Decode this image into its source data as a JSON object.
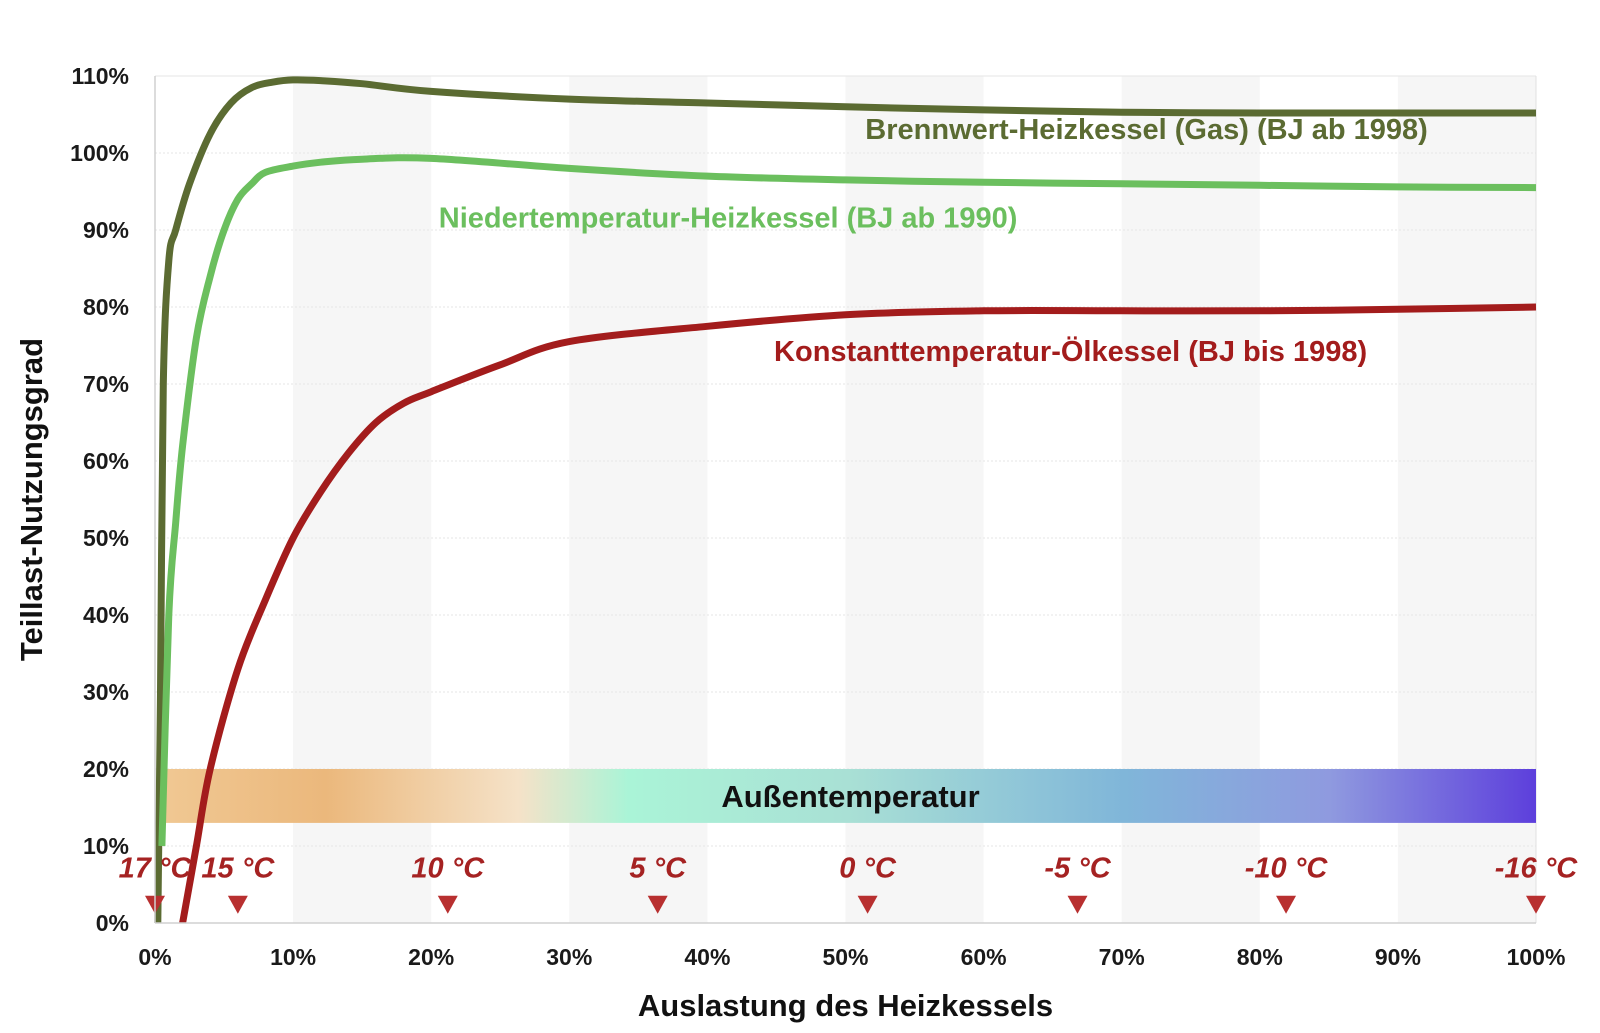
{
  "chart_data": {
    "type": "line",
    "title": "",
    "xlabel": "Auslastung des Heizkessels",
    "ylabel": "Teillast-Nutzungsgrad",
    "xlim": [
      0,
      100
    ],
    "ylim": [
      0,
      110
    ],
    "x_ticks": [
      0,
      10,
      20,
      30,
      40,
      50,
      60,
      70,
      80,
      90,
      100
    ],
    "x_tick_labels": [
      "0%",
      "10%",
      "20%",
      "30%",
      "40%",
      "50%",
      "60%",
      "70%",
      "80%",
      "90%",
      "100%"
    ],
    "y_ticks": [
      0,
      10,
      20,
      30,
      40,
      50,
      60,
      70,
      80,
      90,
      100,
      110
    ],
    "y_tick_labels": [
      "0%",
      "10%",
      "20%",
      "30%",
      "40%",
      "50%",
      "60%",
      "70%",
      "80%",
      "90%",
      "100%",
      "110%"
    ],
    "grid": true,
    "series": [
      {
        "name": "Brennwert-Heizkessel (Gas) (BJ ab 1998)",
        "color": "#5b6b32",
        "x": [
          0.2,
          0.4,
          0.6,
          1,
          1.5,
          2.5,
          4,
          5.5,
          7,
          8.5,
          10,
          12,
          15,
          20,
          30,
          40,
          50,
          60,
          70,
          80,
          90,
          100
        ],
        "y": [
          0,
          30,
          70,
          86,
          90,
          96,
          102.5,
          106.5,
          108.5,
          109.2,
          109.5,
          109.4,
          109,
          108,
          107,
          106.5,
          106,
          105.6,
          105.3,
          105.2,
          105.2,
          105.2
        ]
      },
      {
        "name": "Niedertemperatur-Heizkessel (BJ ab 1990)",
        "color": "#6bbf5e",
        "x": [
          0.5,
          1,
          1.5,
          2,
          3,
          4,
          5,
          6,
          7,
          8,
          10,
          12,
          15,
          20,
          30,
          40,
          50,
          60,
          70,
          80,
          90,
          100
        ],
        "y": [
          10,
          40,
          52,
          62,
          76,
          84,
          90,
          94,
          96,
          97.5,
          98.3,
          98.8,
          99.2,
          99.3,
          98,
          97,
          96.5,
          96.2,
          96,
          95.8,
          95.6,
          95.5
        ]
      },
      {
        "name": "Konstanttemperatur-Ölkessel (BJ bis 1998)",
        "color": "#a31c1c",
        "x": [
          2,
          3,
          4,
          6,
          8,
          10,
          12,
          14,
          16,
          18,
          20,
          25,
          30,
          40,
          50,
          60,
          70,
          80,
          90,
          100
        ],
        "y": [
          0,
          10,
          20,
          33,
          42,
          50,
          56,
          61,
          65,
          67.5,
          69,
          72.5,
          75.5,
          77.5,
          79,
          79.5,
          79.5,
          79.5,
          79.7,
          80
        ]
      }
    ],
    "annotation_band": {
      "label": "Außentemperatur",
      "y_range": [
        13,
        20
      ],
      "x_range": [
        0,
        100
      ],
      "gradient": [
        {
          "at": 0,
          "color": "#f0c893"
        },
        {
          "at": 12,
          "color": "#ebb87c"
        },
        {
          "at": 26,
          "color": "#f5e2c8"
        },
        {
          "at": 34,
          "color": "#aaf4d7"
        },
        {
          "at": 50,
          "color": "#a9e0d5"
        },
        {
          "at": 70,
          "color": "#80b6d9"
        },
        {
          "at": 85,
          "color": "#8f9adf"
        },
        {
          "at": 100,
          "color": "#5d3fdc"
        }
      ]
    },
    "temperature_markers": [
      {
        "x": 0,
        "label": "17 °C"
      },
      {
        "x": 6,
        "label": "15 °C"
      },
      {
        "x": 21.2,
        "label": "10 °C"
      },
      {
        "x": 36.4,
        "label": "5 °C"
      },
      {
        "x": 51.6,
        "label": "0 °C"
      },
      {
        "x": 66.8,
        "label": "-5 °C"
      },
      {
        "x": 81.9,
        "label": "-10 °C"
      },
      {
        "x": 100,
        "label": "-16 °C"
      }
    ],
    "marker_color": "#b83030"
  }
}
